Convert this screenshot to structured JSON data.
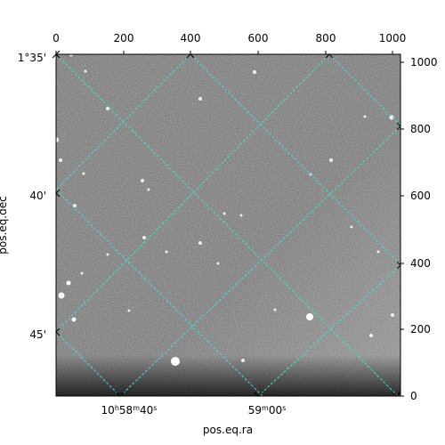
{
  "plot": {
    "xlabel": "pos.eq.ra",
    "ylabel": "pos.eq.dec",
    "x_pixel_ticks": [
      "0",
      "200",
      "400",
      "600",
      "800",
      "1000"
    ],
    "y_pixel_ticks": [
      "0",
      "200",
      "400",
      "600",
      "800",
      "1000"
    ],
    "ra_ticks": [
      {
        "h": "10",
        "m": "58",
        "s": "40",
        "x": 160
      },
      {
        "m": "59",
        "s": "00",
        "x": 600
      }
    ],
    "dec_ticks": [
      "1°35'",
      "40'",
      "45'"
    ],
    "grid_color": "#40e0d0"
  }
}
